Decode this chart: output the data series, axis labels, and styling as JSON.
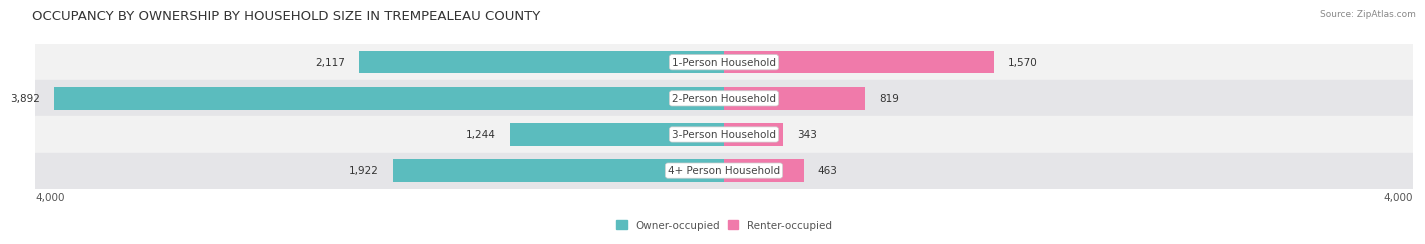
{
  "title": "OCCUPANCY BY OWNERSHIP BY HOUSEHOLD SIZE IN TREMPEALEAU COUNTY",
  "source": "Source: ZipAtlas.com",
  "categories": [
    "1-Person Household",
    "2-Person Household",
    "3-Person Household",
    "4+ Person Household"
  ],
  "owner_values": [
    2117,
    3892,
    1244,
    1922
  ],
  "renter_values": [
    1570,
    819,
    343,
    463
  ],
  "max_scale": 4000,
  "owner_color": "#5bbcbe",
  "renter_color": "#f07aaa",
  "row_bg_light": "#f2f2f2",
  "row_bg_dark": "#e5e5e8",
  "bar_height": 0.62,
  "title_fontsize": 9.5,
  "label_fontsize": 7.5,
  "tick_fontsize": 7.5,
  "legend_fontsize": 7.5,
  "background_color": "#ffffff"
}
